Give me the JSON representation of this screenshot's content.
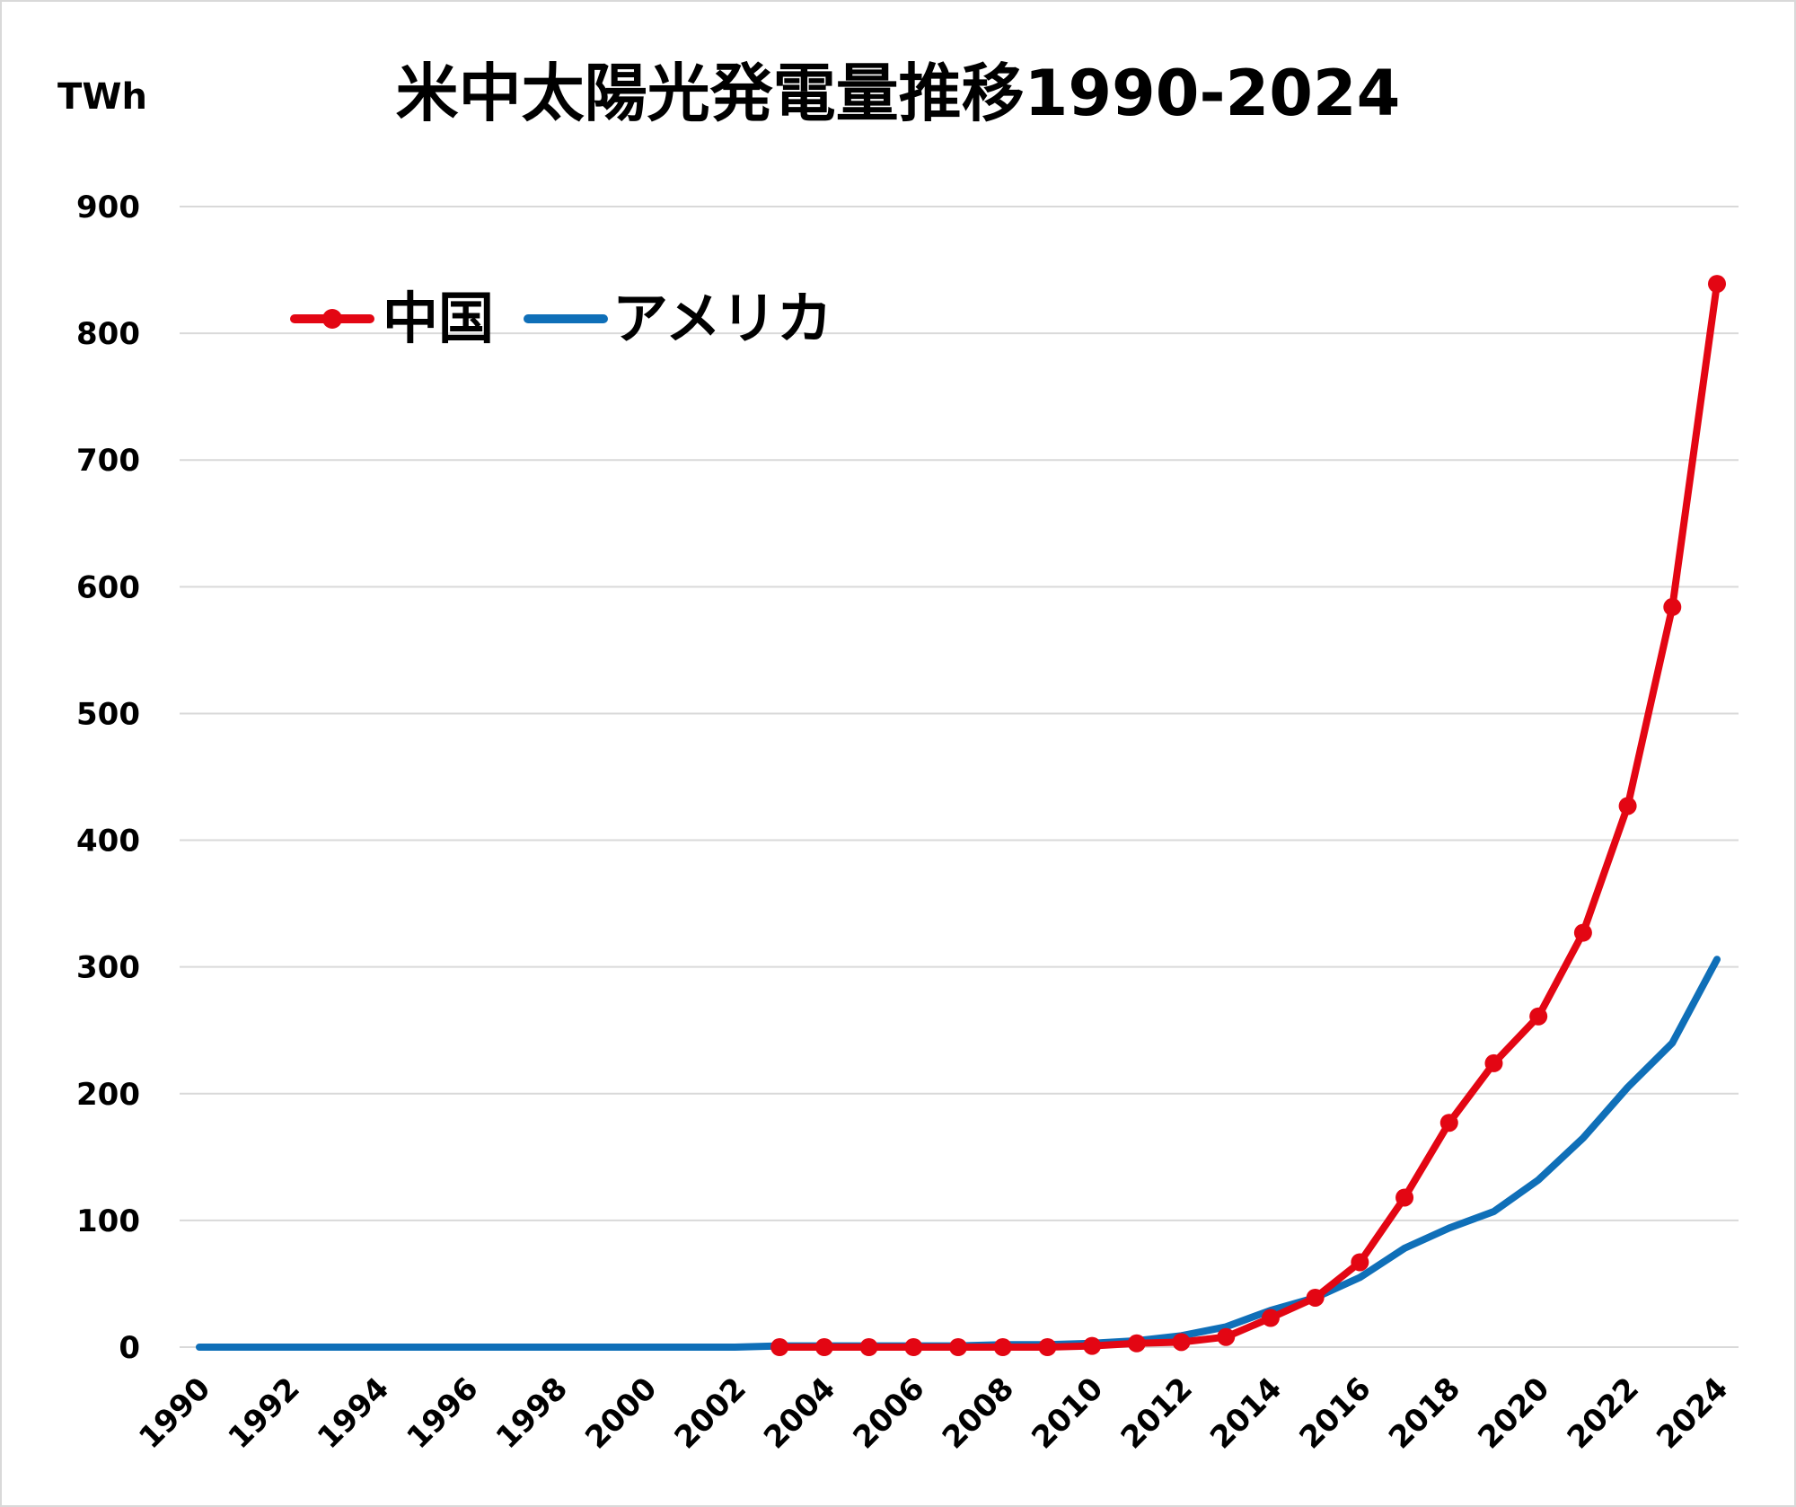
{
  "chart_data": {
    "type": "line",
    "title": "米中太陽光発電量推移1990-2024",
    "unit_label": "TWh",
    "ylim": [
      0,
      900
    ],
    "yticks": [
      0,
      100,
      200,
      300,
      400,
      500,
      600,
      700,
      800,
      900
    ],
    "xlim": [
      1990,
      2024
    ],
    "xticks": [
      1990,
      1992,
      1994,
      1996,
      1998,
      2000,
      2002,
      2004,
      2006,
      2008,
      2010,
      2012,
      2014,
      2016,
      2018,
      2020,
      2022,
      2024
    ],
    "grid": true,
    "legend_position": "top-left",
    "series": [
      {
        "name": "中国",
        "color": "#e30613",
        "markers": true,
        "x": [
          2003,
          2004,
          2005,
          2006,
          2007,
          2008,
          2009,
          2010,
          2011,
          2012,
          2013,
          2014,
          2015,
          2016,
          2017,
          2018,
          2019,
          2020,
          2021,
          2022,
          2023,
          2024
        ],
        "values": [
          0,
          0,
          0,
          0,
          0,
          0,
          0,
          1,
          3,
          4,
          8,
          23,
          39,
          67,
          118,
          177,
          224,
          261,
          327,
          427,
          584,
          839
        ]
      },
      {
        "name": "アメリカ",
        "color": "#0f6fb8",
        "markers": false,
        "x": [
          1990,
          1991,
          1992,
          1993,
          1994,
          1995,
          1996,
          1997,
          1998,
          1999,
          2000,
          2001,
          2002,
          2003,
          2004,
          2005,
          2006,
          2007,
          2008,
          2009,
          2010,
          2011,
          2012,
          2013,
          2014,
          2015,
          2016,
          2017,
          2018,
          2019,
          2020,
          2021,
          2022,
          2023,
          2024
        ],
        "values": [
          0,
          0,
          0,
          0,
          0,
          0,
          0,
          0,
          0,
          0,
          0,
          0,
          0,
          1,
          1,
          1,
          1,
          1,
          2,
          2,
          3,
          5,
          9,
          16,
          29,
          39,
          55,
          78,
          94,
          107,
          132,
          165,
          205,
          240,
          306
        ]
      }
    ]
  }
}
